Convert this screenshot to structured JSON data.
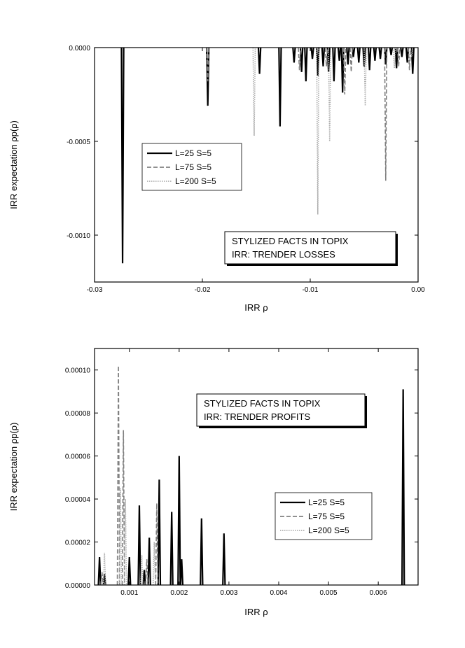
{
  "chart_data": [
    {
      "type": "line",
      "title": "",
      "xlabel": "IRR ρ",
      "ylabel": "IRR expectation ρp(ρ)",
      "xlim": [
        -0.03,
        0.0
      ],
      "ylim": [
        -0.00125,
        0.0
      ],
      "xticks": [
        "-0.03",
        "-0.02",
        "-0.01",
        "0.00"
      ],
      "yticks": [
        "0.0000",
        "-0.0005",
        "-0.0010"
      ],
      "annotation": [
        "STYLIZED FACTS IN TOPIX",
        "IRR:  TRENDER LOSSES"
      ],
      "legend_position": "center-left",
      "series": [
        {
          "name": "L=25   S=5",
          "style": "solid",
          "color": "#000000",
          "x": [
            -0.0274,
            -0.0195,
            -0.0147,
            -0.0128,
            -0.0115,
            -0.0108,
            -0.0104,
            -0.0098,
            -0.0093,
            -0.0088,
            -0.0083,
            -0.0078,
            -0.0073,
            -0.007,
            -0.0065,
            -0.006,
            -0.0055,
            -0.005,
            -0.0045,
            -0.004,
            -0.0035,
            -0.003,
            -0.0025,
            -0.002,
            -0.0015,
            -0.001,
            -0.0005
          ],
          "y": [
            -0.00115,
            -0.00031,
            -0.00014,
            -0.00042,
            -8e-05,
            -0.00013,
            -0.00018,
            -6e-05,
            -0.00015,
            -0.0001,
            -0.00013,
            -0.00018,
            -7e-05,
            -0.00024,
            -9e-05,
            -5e-05,
            -8e-05,
            -0.0001,
            -0.00012,
            -7e-05,
            -6e-05,
            -9e-05,
            -4e-05,
            -0.00011,
            -5e-05,
            -8e-05,
            -0.00014
          ]
        },
        {
          "name": "L=75   S=5",
          "style": "dashed",
          "color": "#808080",
          "x": [
            -0.0195,
            -0.011,
            -0.0085,
            -0.0068,
            -0.0062,
            -0.003,
            -0.0018,
            -0.0008
          ],
          "y": [
            -0.00018,
            -0.00012,
            -0.0001,
            -0.00025,
            -0.00013,
            -0.00071,
            -0.0001,
            -0.00012
          ]
        },
        {
          "name": "L=200 S=5",
          "style": "dotted",
          "color": "#b0b0b0",
          "x": [
            -0.0152,
            -0.0093,
            -0.0082,
            -0.0049,
            -0.0022,
            -0.0006
          ],
          "y": [
            -0.00047,
            -0.00089,
            -0.0005,
            -0.00031,
            -0.00011,
            -5e-05
          ]
        }
      ]
    },
    {
      "type": "line",
      "title": "",
      "xlabel": "IRR ρ",
      "ylabel": "IRR expectation ρp(ρ)",
      "xlim": [
        0.0003,
        0.0068
      ],
      "ylim": [
        0.0,
        0.00011
      ],
      "xticks": [
        "0.001",
        "0.002",
        "0.003",
        "0.004",
        "0.005",
        "0.006"
      ],
      "yticks": [
        "0.00000",
        "0.00002",
        "0.00004",
        "0.00006",
        "0.00008",
        "0.00010"
      ],
      "annotation": [
        "STYLIZED FACTS IN TOPIX",
        "IRR:  TRENDER PROFITS"
      ],
      "legend_position": "center-right",
      "series": [
        {
          "name": "L=25   S=5",
          "style": "solid",
          "color": "#000000",
          "x": [
            0.0004,
            0.0005,
            0.001,
            0.0012,
            0.0013,
            0.0014,
            0.0016,
            0.00185,
            0.002,
            0.00205,
            0.00245,
            0.0029,
            0.0065
          ],
          "y": [
            1.3e-05,
            5e-06,
            1.3e-05,
            3.7e-05,
            7e-06,
            2.2e-05,
            4.9e-05,
            3.4e-05,
            6e-05,
            1.2e-05,
            3.1e-05,
            2.4e-05,
            9.1e-05
          ]
        },
        {
          "name": "L=75   S=5",
          "style": "dashed",
          "color": "#808080",
          "x": [
            0.00045,
            0.00078,
            0.00088,
            0.00135,
            0.00155
          ],
          "y": [
            6e-06,
            0.000102,
            7.2e-05,
            1.2e-05,
            3.8e-05
          ]
        },
        {
          "name": "L=200 S=5",
          "style": "dotted",
          "color": "#b0b0b0",
          "x": [
            0.0005,
            0.00082,
            0.00092,
            0.00125,
            0.0015
          ],
          "y": [
            1.5e-05,
            4.5e-05,
            4e-05,
            1.4e-05,
            2e-05
          ]
        }
      ]
    }
  ]
}
